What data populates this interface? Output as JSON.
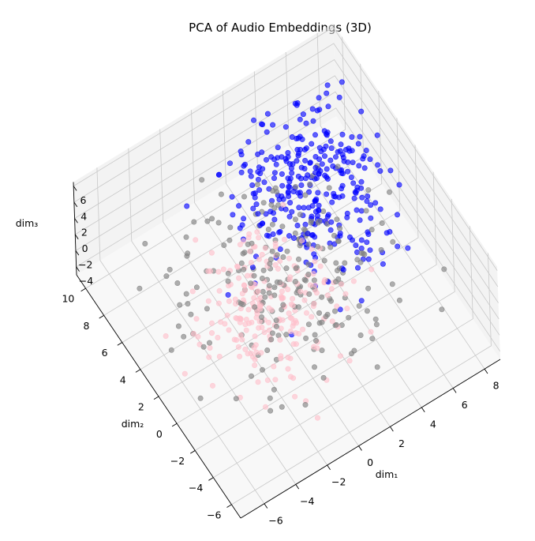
{
  "chart_data": {
    "type": "scatter",
    "title": "PCA of Audio Embeddings (3D)",
    "xlabel": "dim₁",
    "ylabel": "dim₂",
    "zlabel": "dim₃",
    "xlim": [
      -7.5,
      9
    ],
    "ylim": [
      -7,
      11
    ],
    "zlim": [
      -5,
      6.5
    ],
    "xticks": [
      -6,
      -4,
      -2,
      0,
      2,
      4,
      6,
      8
    ],
    "yticks": [
      -6,
      -4,
      -2,
      0,
      2,
      4,
      6,
      8,
      10
    ],
    "zticks": [
      -4,
      -2,
      0,
      2,
      4,
      6
    ],
    "grid": true,
    "colors": {
      "blue": "#0000ff",
      "gray": "#808080",
      "pink": "#ffc0cb"
    },
    "series_clouds": [
      {
        "color": "#0000ff",
        "count": 330,
        "center": [
          4.5,
          6.0,
          0.0
        ],
        "spread": [
          2.2,
          2.6,
          1.5
        ]
      },
      {
        "color": "#808080",
        "count": 230,
        "center": [
          0.5,
          2.0,
          0.0
        ],
        "spread": [
          3.0,
          3.2,
          1.5
        ]
      },
      {
        "color": "#ffc0cb",
        "count": 230,
        "center": [
          -1.0,
          1.0,
          0.0
        ],
        "spread": [
          2.0,
          2.2,
          1.4
        ]
      }
    ]
  }
}
